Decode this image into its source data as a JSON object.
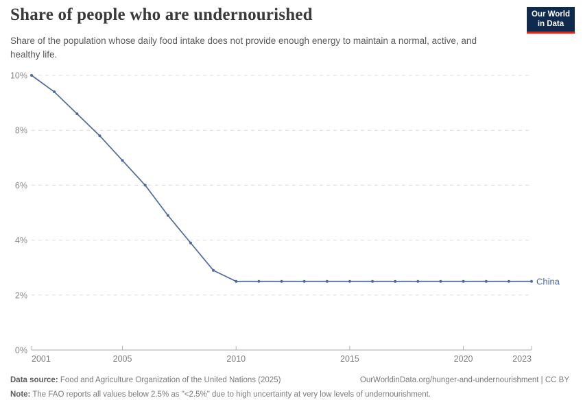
{
  "header": {
    "title": "Share of people who are undernourished",
    "subtitle": "Share of the population whose daily food intake does not provide enough energy to maintain a normal, active, and healthy life.",
    "logo": {
      "line1": "Our World",
      "line2": "in Data",
      "bg_color": "#102a4e",
      "bar_color": "#cf2b1e"
    }
  },
  "chart_data": {
    "type": "line",
    "title": "Share of people who are undernourished",
    "xlabel": "",
    "ylabel": "",
    "xlim": [
      2001,
      2023
    ],
    "ylim": [
      0,
      10
    ],
    "x_ticks": [
      2001,
      2005,
      2010,
      2015,
      2020,
      2023
    ],
    "y_ticks": [
      0,
      2,
      4,
      6,
      8,
      10
    ],
    "y_tick_suffix": "%",
    "grid": "horizontal-dashed",
    "legend_position": "end-of-line",
    "categories": [
      2001,
      2002,
      2003,
      2004,
      2005,
      2006,
      2007,
      2008,
      2009,
      2010,
      2011,
      2012,
      2013,
      2014,
      2015,
      2016,
      2017,
      2018,
      2019,
      2020,
      2021,
      2022,
      2023
    ],
    "series": [
      {
        "name": "China",
        "color": "#4C6A9C",
        "values": [
          10,
          9.4,
          8.6,
          7.8,
          6.9,
          6,
          4.9,
          3.9,
          2.9,
          2.5,
          2.5,
          2.5,
          2.5,
          2.5,
          2.5,
          2.5,
          2.5,
          2.5,
          2.5,
          2.5,
          2.5,
          2.5,
          2.5
        ]
      }
    ],
    "colors": {
      "gridline": "#dcdcdc",
      "axis": "#a9a9a9",
      "tick": "#b3b3b3",
      "y_label": "#8a8a8a",
      "x_label": "#7d7d7d"
    }
  },
  "footer": {
    "datasource_label": "Data source:",
    "datasource_text": "Food and Agriculture Organization of the United Nations (2025)",
    "link": "OurWorldinData.org/hunger-and-undernourishment | CC BY",
    "note_label": "Note:",
    "note_text": "The FAO reports all values below 2.5% as \"<2.5%\" due to high uncertainty at very low levels of undernourishment."
  }
}
